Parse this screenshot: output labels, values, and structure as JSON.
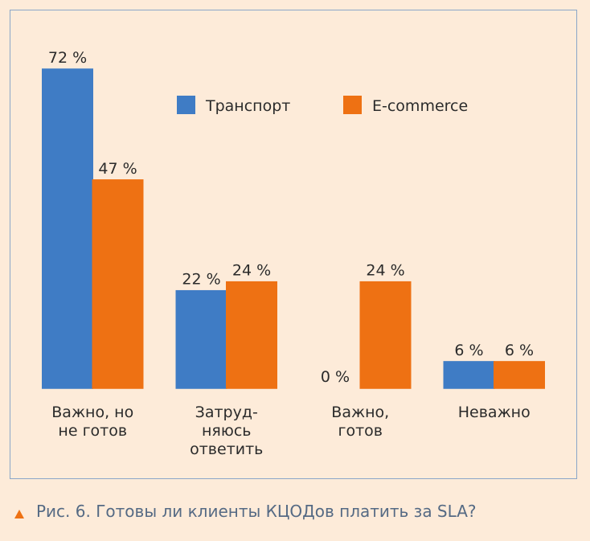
{
  "chart_data": {
    "type": "bar",
    "caption": "Рис. 6. Готовы ли клиенты КЦОДов платить за SLA?",
    "categories": [
      "Важно, но\nне готов",
      "Затруд-\nняюсь\nответить",
      "Важно,\nготов",
      "Неважно"
    ],
    "series": [
      {
        "name": "Транспорт",
        "color": "#3f7cc5",
        "values": [
          72,
          22,
          0,
          6
        ],
        "value_labels": [
          "72 %",
          "22 %",
          "0 %",
          "6 %"
        ]
      },
      {
        "name": "E-commerce",
        "color": "#ee7113",
        "values": [
          47,
          24,
          24,
          6
        ],
        "value_labels": [
          "47 %",
          "24 %",
          "24 %",
          "6 %"
        ]
      }
    ],
    "ylim": [
      0,
      72
    ],
    "grid": false,
    "legend": "top"
  }
}
